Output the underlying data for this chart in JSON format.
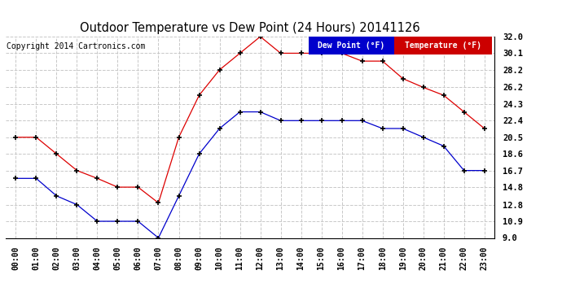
{
  "title": "Outdoor Temperature vs Dew Point (24 Hours) 20141126",
  "copyright": "Copyright 2014 Cartronics.com",
  "background_color": "#ffffff",
  "plot_bg_color": "#ffffff",
  "grid_color": "#c8c8c8",
  "hours": [
    "00:00",
    "01:00",
    "02:00",
    "03:00",
    "04:00",
    "05:00",
    "06:00",
    "07:00",
    "08:00",
    "09:00",
    "10:00",
    "11:00",
    "12:00",
    "13:00",
    "14:00",
    "15:00",
    "16:00",
    "17:00",
    "18:00",
    "19:00",
    "20:00",
    "21:00",
    "22:00",
    "23:00"
  ],
  "temperature": [
    20.5,
    20.5,
    18.6,
    16.7,
    15.8,
    14.8,
    14.8,
    13.0,
    20.5,
    25.3,
    28.2,
    30.1,
    32.0,
    30.1,
    30.1,
    30.1,
    30.1,
    29.2,
    29.2,
    27.2,
    26.2,
    25.3,
    23.4,
    21.5
  ],
  "dew_point": [
    15.8,
    15.8,
    13.8,
    12.8,
    10.9,
    10.9,
    10.9,
    9.0,
    13.8,
    18.6,
    21.5,
    23.4,
    23.4,
    22.4,
    22.4,
    22.4,
    22.4,
    22.4,
    21.5,
    21.5,
    20.5,
    19.5,
    16.7,
    16.7
  ],
  "temp_color": "#dd0000",
  "dew_color": "#0000cc",
  "marker": "+",
  "ylim_min": 9.0,
  "ylim_max": 32.0,
  "yticks": [
    9.0,
    10.9,
    12.8,
    14.8,
    16.7,
    18.6,
    20.5,
    22.4,
    24.3,
    26.2,
    28.2,
    30.1,
    32.0
  ],
  "legend_dew_bg": "#0000cc",
  "legend_temp_bg": "#cc0000",
  "legend_text_color": "#ffffff",
  "title_fontsize": 10.5,
  "tick_fontsize": 7,
  "copyright_fontsize": 7
}
